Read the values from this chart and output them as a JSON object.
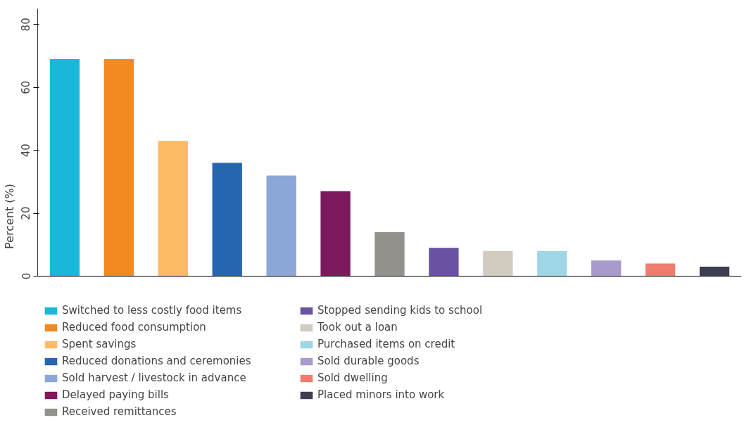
{
  "chart_data": {
    "type": "bar",
    "ylabel": "Percent (%)",
    "categories": [
      null,
      null,
      null,
      null,
      null,
      null,
      null,
      null,
      null,
      null,
      null,
      null,
      null
    ],
    "series": [
      {
        "name": "Switched to less costly food items",
        "color": "#1ab8d8",
        "values": [
          69,
          null,
          null,
          null,
          null,
          null,
          null,
          null,
          null,
          null,
          null,
          null,
          null
        ]
      },
      {
        "name": "Reduced food consumption",
        "color": "#f28a22",
        "values": [
          null,
          69,
          null,
          null,
          null,
          null,
          null,
          null,
          null,
          null,
          null,
          null,
          null
        ]
      },
      {
        "name": "Spent savings",
        "color": "#fdbb68",
        "values": [
          null,
          null,
          43,
          null,
          null,
          null,
          null,
          null,
          null,
          null,
          null,
          null,
          null
        ]
      },
      {
        "name": "Reduced donations and ceremonies",
        "color": "#2666b0",
        "values": [
          null,
          null,
          null,
          36,
          null,
          null,
          null,
          null,
          null,
          null,
          null,
          null,
          null
        ]
      },
      {
        "name": "Sold harvest / livestock in advance",
        "color": "#8ba7d8",
        "values": [
          null,
          null,
          null,
          null,
          32,
          null,
          null,
          null,
          null,
          null,
          null,
          null,
          null
        ]
      },
      {
        "name": "Delayed paying bills",
        "color": "#7d1a5e",
        "values": [
          null,
          null,
          null,
          null,
          null,
          27,
          null,
          null,
          null,
          null,
          null,
          null,
          null
        ]
      },
      {
        "name": "Received remittances",
        "color": "#93918b",
        "values": [
          null,
          null,
          null,
          null,
          null,
          null,
          14,
          null,
          null,
          null,
          null,
          null,
          null
        ]
      },
      {
        "name": "Stopped sending kids to school",
        "color": "#6a52a3",
        "values": [
          null,
          null,
          null,
          null,
          null,
          null,
          null,
          9,
          null,
          null,
          null,
          null,
          null
        ]
      },
      {
        "name": "Took out a loan",
        "color": "#d2cbc0",
        "values": [
          null,
          null,
          null,
          null,
          null,
          null,
          null,
          null,
          8,
          null,
          null,
          null,
          null
        ]
      },
      {
        "name": "Purchased items on credit",
        "color": "#9ed6e8",
        "values": [
          null,
          null,
          null,
          null,
          null,
          null,
          null,
          null,
          null,
          8,
          null,
          null,
          null
        ]
      },
      {
        "name": "Sold durable goods",
        "color": "#a89acb",
        "values": [
          null,
          null,
          null,
          null,
          null,
          null,
          null,
          null,
          null,
          null,
          5,
          null,
          null
        ]
      },
      {
        "name": "Sold dwelling",
        "color": "#f07c6f",
        "values": [
          null,
          null,
          null,
          null,
          null,
          null,
          null,
          null,
          null,
          null,
          null,
          4,
          null
        ]
      },
      {
        "name": "Placed minors into work",
        "color": "#3e3e52",
        "values": [
          null,
          null,
          null,
          null,
          null,
          null,
          null,
          null,
          null,
          null,
          null,
          null,
          3
        ]
      }
    ],
    "ylim": [
      0,
      85
    ],
    "yticks": [
      0,
      20,
      40,
      60,
      80
    ],
    "grid": false,
    "legend": "bottom",
    "tick_labels": "y"
  }
}
